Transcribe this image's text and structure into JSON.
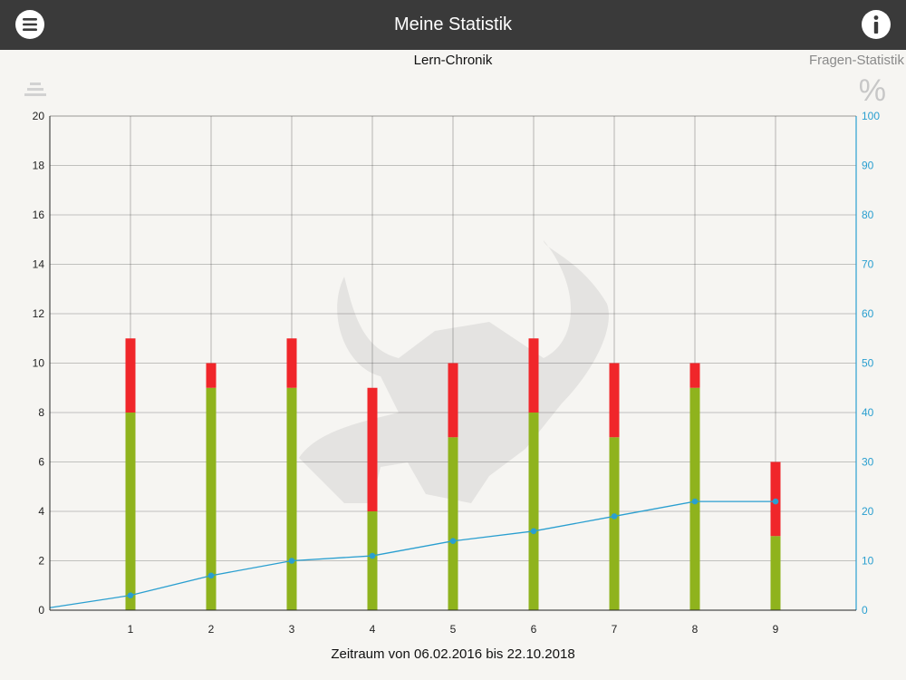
{
  "header": {
    "title": "Meine Statistik",
    "menu_icon": "hamburger-menu-icon",
    "info_icon": "info-icon"
  },
  "tabs": {
    "chronik": "Lern-Chronik",
    "fragen": "Fragen-Statistik"
  },
  "side_icons": {
    "left": "stacked-bars-icon",
    "right_glyph": "%"
  },
  "footer": {
    "period": "Zeitraum von 06.02.2016 bis 22.10.2018"
  },
  "colors": {
    "header_bg": "#3a3a3a",
    "correct": "#8fb31d",
    "wrong": "#f0262a",
    "line": "#2a9fd0",
    "grid": "#333333",
    "right_axis": "#2a9fd0"
  },
  "chart_data": {
    "type": "bar",
    "stacked": true,
    "categories": [
      "1",
      "2",
      "3",
      "4",
      "5",
      "6",
      "7",
      "8",
      "9"
    ],
    "series": [
      {
        "color": "#8fb31d",
        "values": [
          8,
          9,
          9,
          4,
          7,
          8,
          7,
          9,
          3
        ]
      },
      {
        "color": "#f0262a",
        "values": [
          3,
          1,
          2,
          5,
          3,
          3,
          3,
          1,
          3
        ]
      }
    ],
    "line_series": {
      "axis": "right",
      "color": "#2a9fd0",
      "start_value": 0.5,
      "values": [
        3,
        7,
        10,
        11,
        14,
        16,
        19,
        22,
        22
      ]
    },
    "left_axis": {
      "ylim": [
        0,
        20
      ],
      "ticks": [
        0,
        2,
        4,
        6,
        8,
        10,
        12,
        14,
        16,
        18,
        20
      ]
    },
    "right_axis": {
      "ylim": [
        0,
        100
      ],
      "ticks": [
        0,
        10,
        20,
        30,
        40,
        50,
        60,
        70,
        80,
        90,
        100
      ]
    },
    "grid": true,
    "xlabel": "",
    "ylabel": ""
  }
}
